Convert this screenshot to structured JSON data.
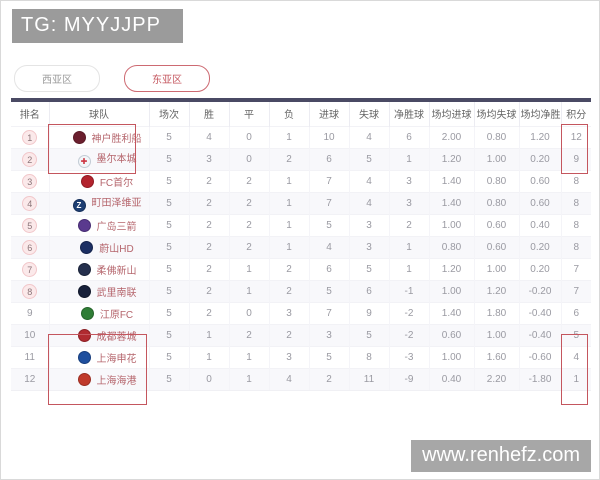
{
  "page": {
    "badge": "TG: MYYJJPP",
    "watermark": "www.renhefz.com"
  },
  "tabs": [
    {
      "label": "西亚区",
      "active": false
    },
    {
      "label": "东亚区",
      "active": true
    }
  ],
  "table": {
    "columns": [
      "排名",
      "球队",
      "场次",
      "胜",
      "平",
      "负",
      "进球",
      "失球",
      "净胜球",
      "场均进球",
      "场均失球",
      "场均净胜",
      "积分"
    ],
    "rows": [
      {
        "rank": "1",
        "team": "神户胜利船",
        "rank_badge": true,
        "logo": {
          "bg": "#6b1f2e",
          "fg": "#e8c9a0",
          "border": "#5a1a26",
          "glyph": ""
        },
        "cells": [
          "5",
          "4",
          "0",
          "1",
          "10",
          "4",
          "6",
          "2.00",
          "0.80",
          "1.20",
          "12"
        ]
      },
      {
        "rank": "2",
        "team": "墨尔本城",
        "rank_badge": true,
        "logo": {
          "bg": "#f2f5f8",
          "fg": "#cc3340",
          "border": "#c3ccd5",
          "glyph": "✚"
        },
        "cells": [
          "5",
          "3",
          "0",
          "2",
          "6",
          "5",
          "1",
          "1.20",
          "1.00",
          "0.20",
          "9"
        ]
      },
      {
        "rank": "3",
        "team": "FC首尔",
        "rank_badge": true,
        "logo": {
          "bg": "#b3242e",
          "fg": "#e7b64a",
          "border": "#8f1c24",
          "glyph": ""
        },
        "cells": [
          "5",
          "2",
          "2",
          "1",
          "7",
          "4",
          "3",
          "1.40",
          "0.80",
          "0.60",
          "8"
        ]
      },
      {
        "rank": "4",
        "team": "町田泽维亚",
        "rank_badge": true,
        "logo": {
          "bg": "#1d3e73",
          "fg": "#ffffff",
          "border": "#16305a",
          "glyph": "Z"
        },
        "cells": [
          "5",
          "2",
          "2",
          "1",
          "7",
          "4",
          "3",
          "1.40",
          "0.80",
          "0.60",
          "8"
        ]
      },
      {
        "rank": "5",
        "team": "广岛三箭",
        "rank_badge": true,
        "logo": {
          "bg": "#5a3a8e",
          "fg": "#ffffff",
          "border": "#472d72",
          "glyph": ""
        },
        "cells": [
          "5",
          "2",
          "2",
          "1",
          "5",
          "3",
          "2",
          "1.00",
          "0.60",
          "0.40",
          "8"
        ]
      },
      {
        "rank": "6",
        "team": "蔚山HD",
        "rank_badge": true,
        "logo": {
          "bg": "#1c2f63",
          "fg": "#f2c335",
          "border": "#15244d",
          "glyph": ""
        },
        "cells": [
          "5",
          "2",
          "2",
          "1",
          "4",
          "3",
          "1",
          "0.80",
          "0.60",
          "0.20",
          "8"
        ]
      },
      {
        "rank": "7",
        "team": "柔佛新山",
        "rank_badge": true,
        "logo": {
          "bg": "#25304d",
          "fg": "#d23b3b",
          "border": "#1b2439",
          "glyph": ""
        },
        "cells": [
          "5",
          "2",
          "1",
          "2",
          "6",
          "5",
          "1",
          "1.20",
          "1.00",
          "0.20",
          "7"
        ]
      },
      {
        "rank": "8",
        "team": "武里南联",
        "rank_badge": true,
        "logo": {
          "bg": "#17203a",
          "fg": "#cfd6e4",
          "border": "#10172a",
          "glyph": ""
        },
        "cells": [
          "5",
          "2",
          "1",
          "2",
          "5",
          "6",
          "-1",
          "1.00",
          "1.20",
          "-0.20",
          "7"
        ]
      },
      {
        "rank": "9",
        "team": "江原FC",
        "rank_badge": false,
        "logo": {
          "bg": "#2f7d36",
          "fg": "#e9c93f",
          "border": "#26642b",
          "glyph": ""
        },
        "cells": [
          "5",
          "2",
          "0",
          "3",
          "7",
          "9",
          "-2",
          "1.40",
          "1.80",
          "-0.40",
          "6"
        ]
      },
      {
        "rank": "10",
        "team": "成都蓉城",
        "rank_badge": false,
        "logo": {
          "bg": "#b02a30",
          "fg": "#ffffff",
          "border": "#8c2126",
          "glyph": ""
        },
        "cells": [
          "5",
          "1",
          "2",
          "2",
          "3",
          "5",
          "-2",
          "0.60",
          "1.00",
          "-0.40",
          "5"
        ]
      },
      {
        "rank": "11",
        "team": "上海申花",
        "rank_badge": false,
        "logo": {
          "bg": "#1f4f9e",
          "fg": "#ffffff",
          "border": "#183e7d",
          "glyph": ""
        },
        "cells": [
          "5",
          "1",
          "1",
          "3",
          "5",
          "8",
          "-3",
          "1.00",
          "1.60",
          "-0.60",
          "4"
        ]
      },
      {
        "rank": "12",
        "team": "上海海港",
        "rank_badge": false,
        "logo": {
          "bg": "#c03a2b",
          "fg": "#f2d039",
          "border": "#9a2e22",
          "glyph": ""
        },
        "cells": [
          "5",
          "0",
          "1",
          "4",
          "2",
          "11",
          "-9",
          "0.40",
          "2.20",
          "-1.80",
          "1"
        ]
      }
    ]
  },
  "colors": {
    "accent_red": "#c4565e",
    "table_top_bar": "#4a4a64",
    "badge_bg": "#9b9b9b",
    "watermark_bg": "#a7a7a7"
  }
}
